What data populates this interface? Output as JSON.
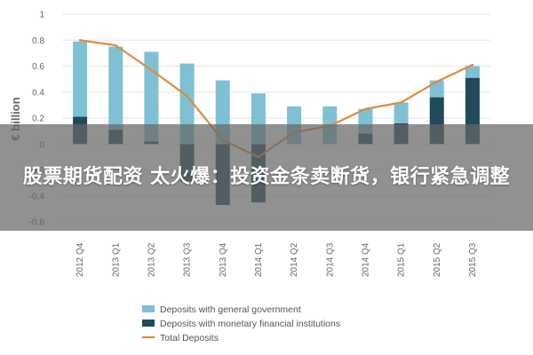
{
  "colors": {
    "general_government": "#7fc0d4",
    "monetary_institutions": "#214a5a",
    "total_deposits": "#e08a3c",
    "grid": "#e6e6e6",
    "overlay": "#666666"
  },
  "overlay": {
    "title": "股票期货配资 太火爆：投资金条卖断货，银行紧急调整"
  },
  "chart_data": {
    "type": "bar",
    "stacked": true,
    "categories": [
      "2012 Q4",
      "2013 Q1",
      "2013 Q2",
      "2013 Q3",
      "2013 Q4",
      "2014 Q1",
      "2014 Q2",
      "2014 Q3",
      "2014 Q4",
      "2015 Q1",
      "2015 Q2",
      "2015 Q3"
    ],
    "ylabel": "€ billion",
    "ylim": [
      -0.6,
      1
    ],
    "yticks": [
      "1",
      "0.8",
      "0.6",
      "0.4",
      "0.2",
      "0",
      "-0.2",
      "-0.4",
      "-0.6"
    ],
    "grid": true,
    "legend_position": "bottom",
    "series": [
      {
        "name": "Deposits with general government",
        "kind": "bar",
        "values": [
          0.58,
          0.64,
          0.69,
          0.62,
          0.49,
          0.39,
          0.29,
          0.29,
          0.19,
          0.16,
          0.13,
          0.09
        ]
      },
      {
        "name": "Deposits with monetary financial institutions",
        "kind": "bar",
        "values": [
          0.21,
          0.11,
          0.02,
          -0.29,
          -0.47,
          -0.45,
          0.0,
          0.0,
          0.08,
          0.16,
          0.36,
          0.51
        ]
      },
      {
        "name": "Total Deposits",
        "kind": "line",
        "values": [
          0.8,
          0.76,
          0.57,
          0.37,
          0.03,
          -0.1,
          0.09,
          0.14,
          0.27,
          0.32,
          0.48,
          0.61
        ]
      }
    ]
  }
}
